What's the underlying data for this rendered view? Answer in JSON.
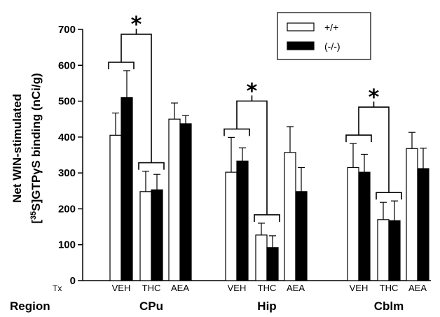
{
  "chart_data": {
    "type": "bar",
    "ylabel_line1": "Net WIN-stimulated",
    "ylabel_line2_pre": "[",
    "ylabel_line2_sup": "35",
    "ylabel_line2_post": "S]GTPγS binding (nCi/g)",
    "ylim": [
      0,
      700
    ],
    "yticks": [
      0,
      100,
      200,
      300,
      400,
      500,
      600,
      700
    ],
    "tx_label": "Tx",
    "region_row_label": "Region",
    "regions": [
      "CPu",
      "Hip",
      "Cblm"
    ],
    "treatments": [
      "VEH",
      "THC",
      "AEA"
    ],
    "series": [
      {
        "name": "+/+",
        "color": "#ffffff",
        "values": [
          [
            405,
            248,
            450
          ],
          [
            302,
            127,
            357
          ],
          [
            315,
            170,
            368
          ]
        ],
        "errors": [
          [
            62,
            57,
            45
          ],
          [
            97,
            33,
            72
          ],
          [
            67,
            48,
            45
          ]
        ]
      },
      {
        "name": "(-/-)",
        "color": "#000000",
        "values": [
          [
            510,
            253,
            437
          ],
          [
            333,
            92,
            248
          ],
          [
            302,
            167,
            312
          ]
        ],
        "errors": [
          [
            75,
            43,
            23
          ],
          [
            37,
            33,
            67
          ],
          [
            50,
            55,
            57
          ]
        ]
      }
    ],
    "significance": [
      {
        "region": "CPu",
        "label": "*"
      },
      {
        "region": "Hip",
        "label": "*"
      },
      {
        "region": "Cblm",
        "label": "*"
      }
    ]
  }
}
